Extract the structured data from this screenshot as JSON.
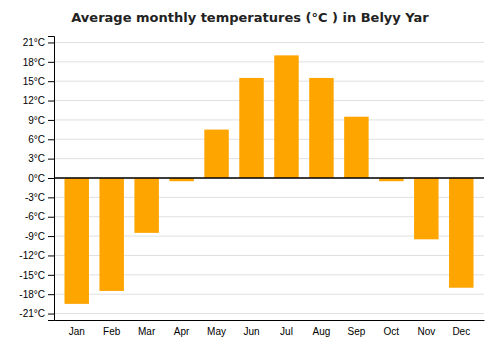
{
  "chart_data": {
    "type": "bar",
    "title": "Average monthly temperatures (°C ) in Belyy Yar",
    "categories": [
      "Jan",
      "Feb",
      "Mar",
      "Apr",
      "May",
      "Jun",
      "Jul",
      "Aug",
      "Sep",
      "Oct",
      "Nov",
      "Dec"
    ],
    "values": [
      -19.5,
      -17.5,
      -8.5,
      -0.5,
      7.5,
      15.5,
      19.0,
      15.5,
      9.5,
      -0.5,
      -9.5,
      -17.0
    ],
    "color": "#FFA500",
    "ylim": [
      -22,
      22
    ],
    "yticks": [
      {
        "value": -21,
        "label": "-21°C"
      },
      {
        "value": -18,
        "label": "-18°C"
      },
      {
        "value": -15,
        "label": "-15°C"
      },
      {
        "value": -12,
        "label": "-12°C"
      },
      {
        "value": -9,
        "label": "-9°C"
      },
      {
        "value": -6,
        "label": "-6°C"
      },
      {
        "value": -3,
        "label": "-3°C"
      },
      {
        "value": 0,
        "label": "0°C"
      },
      {
        "value": 3,
        "label": "3°C"
      },
      {
        "value": 6,
        "label": "6°C"
      },
      {
        "value": 9,
        "label": "9°C"
      },
      {
        "value": 12,
        "label": "12°C"
      },
      {
        "value": 15,
        "label": "15°C"
      },
      {
        "value": 18,
        "label": "18°C"
      },
      {
        "value": 21,
        "label": "21°C"
      }
    ],
    "grid": true
  }
}
